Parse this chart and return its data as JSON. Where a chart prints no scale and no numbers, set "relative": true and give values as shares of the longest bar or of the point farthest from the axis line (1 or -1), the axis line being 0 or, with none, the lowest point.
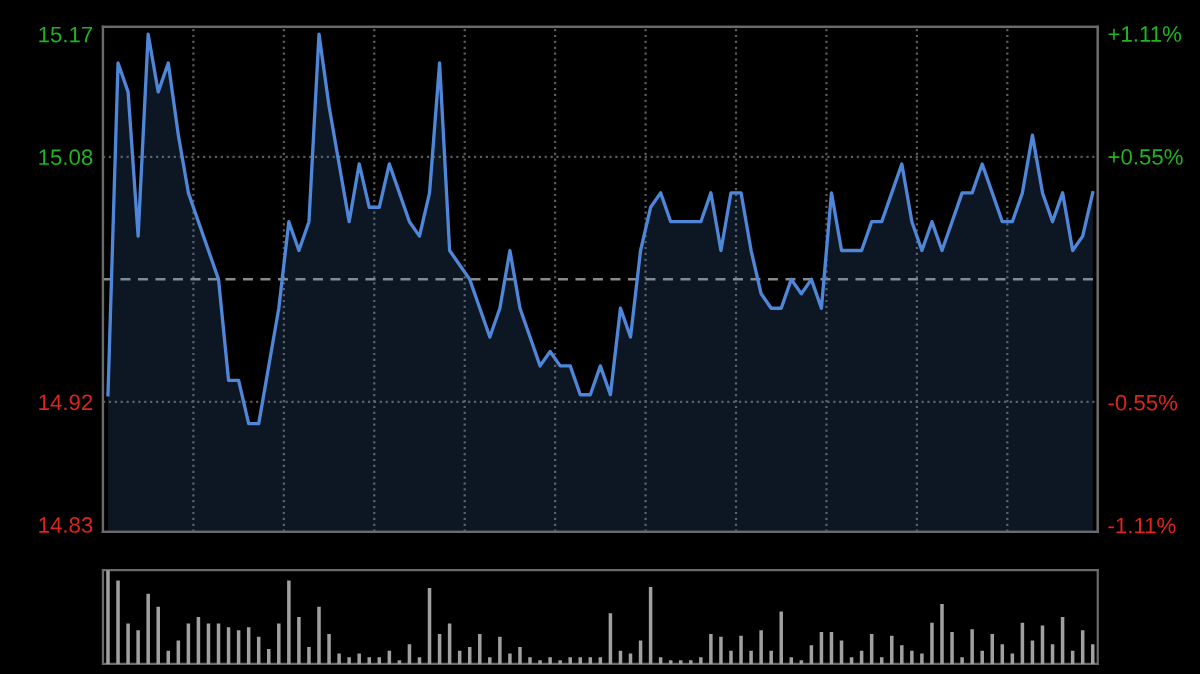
{
  "chart_data": [
    {
      "type": "area",
      "categories": [
        null,
        null,
        null,
        null,
        null,
        null,
        null,
        null,
        null,
        null,
        null,
        null,
        null,
        null,
        null,
        null,
        null,
        null,
        null,
        null,
        null,
        null,
        null,
        null,
        null,
        null,
        null,
        null,
        null,
        null,
        null,
        null,
        null,
        null,
        null,
        null,
        null,
        null,
        null,
        null,
        null,
        null,
        null,
        null,
        null,
        null,
        null,
        null,
        null,
        null,
        null,
        null,
        null,
        null,
        null,
        null,
        null,
        null,
        null,
        null,
        null,
        null,
        null,
        null,
        null,
        null,
        null,
        null,
        null,
        null,
        null,
        null,
        null,
        null,
        null,
        null,
        null,
        null,
        null,
        null,
        null,
        null,
        null,
        null,
        null,
        null,
        null,
        null,
        null,
        null,
        null,
        null,
        null,
        null,
        null,
        null,
        null,
        null,
        null
      ],
      "series": [
        {
          "color": "#4f86d8",
          "values": [
            14.92,
            15.15,
            15.13,
            15.03,
            15.17,
            15.13,
            15.15,
            15.1,
            15.06,
            15.04,
            15.02,
            15.0,
            14.93,
            14.93,
            14.9,
            14.9,
            14.94,
            14.98,
            15.04,
            15.02,
            15.04,
            15.17,
            15.12,
            15.08,
            15.04,
            15.08,
            15.05,
            15.05,
            15.08,
            15.06,
            15.04,
            15.03,
            15.06,
            15.15,
            15.02,
            15.01,
            15.0,
            14.98,
            14.96,
            14.98,
            15.02,
            14.98,
            14.96,
            14.94,
            14.95,
            14.94,
            14.94,
            14.92,
            14.92,
            14.94,
            14.92,
            14.98,
            14.96,
            15.02,
            15.05,
            15.06,
            15.04,
            15.04,
            15.04,
            15.04,
            15.06,
            15.02,
            15.06,
            15.06,
            15.02,
            14.99,
            14.98,
            14.98,
            15.0,
            14.99,
            15.0,
            14.98,
            15.06,
            15.02,
            15.02,
            15.02,
            15.04,
            15.04,
            15.06,
            15.08,
            15.04,
            15.02,
            15.04,
            15.02,
            15.04,
            15.06,
            15.06,
            15.08,
            15.06,
            15.04,
            15.04,
            15.06,
            15.1,
            15.06,
            15.04,
            15.06,
            15.02,
            15.03,
            15.06
          ]
        }
      ],
      "ylim": [
        14.825,
        15.175
      ],
      "yticks": [
        15.17,
        {
          "value": 15.085,
          "label": "15.08"
        },
        {
          "value": 14.915,
          "label": "14.92"
        },
        14.83
      ],
      "y2lim": [
        -1.14,
        1.14
      ],
      "y2ticks": [
        {
          "value": 1.11,
          "label": "+1.11%"
        },
        {
          "value": 0.555,
          "label": "+0.55%"
        },
        {
          "value": -0.555,
          "label": "-0.55%"
        },
        {
          "value": -1.11,
          "label": "-1.11%"
        }
      ],
      "ref_lines": [
        {
          "axis": "y",
          "value": 15.0,
          "color": "#8a8a8a",
          "line_style": "dashed"
        }
      ],
      "grid": true
    },
    {
      "type": "bar",
      "relative": true,
      "categories": [
        null,
        null,
        null,
        null,
        null,
        null,
        null,
        null,
        null,
        null,
        null,
        null,
        null,
        null,
        null,
        null,
        null,
        null,
        null,
        null,
        null,
        null,
        null,
        null,
        null,
        null,
        null,
        null,
        null,
        null,
        null,
        null,
        null,
        null,
        null,
        null,
        null,
        null,
        null,
        null,
        null,
        null,
        null,
        null,
        null,
        null,
        null,
        null,
        null,
        null,
        null,
        null,
        null,
        null,
        null,
        null,
        null,
        null,
        null,
        null,
        null,
        null,
        null,
        null,
        null,
        null,
        null,
        null,
        null,
        null,
        null,
        null,
        null,
        null,
        null,
        null,
        null,
        null,
        null,
        null,
        null,
        null,
        null,
        null,
        null,
        null,
        null,
        null,
        null,
        null,
        null,
        null,
        null,
        null,
        null,
        null,
        null,
        null,
        null
      ],
      "series": [
        {
          "color": "#a0a0a0",
          "values": [
            1.0,
            0.89,
            0.43,
            0.36,
            0.75,
            0.61,
            0.14,
            0.25,
            0.43,
            0.5,
            0.43,
            0.43,
            0.39,
            0.36,
            0.39,
            0.29,
            0.16,
            0.43,
            0.89,
            0.5,
            0.18,
            0.61,
            0.32,
            0.11,
            0.07,
            0.11,
            0.07,
            0.07,
            0.14,
            0.04,
            0.21,
            0.07,
            0.81,
            0.32,
            0.43,
            0.14,
            0.18,
            0.32,
            0.07,
            0.29,
            0.11,
            0.18,
            0.07,
            0.04,
            0.07,
            0.04,
            0.07,
            0.07,
            0.07,
            0.07,
            0.54,
            0.14,
            0.11,
            0.25,
            0.82,
            0.07,
            0.04,
            0.04,
            0.04,
            0.07,
            0.32,
            0.29,
            0.14,
            0.3,
            0.14,
            0.36,
            0.14,
            0.56,
            0.07,
            0.04,
            0.2,
            0.34,
            0.34,
            0.25,
            0.07,
            0.14,
            0.32,
            0.07,
            0.3,
            0.2,
            0.14,
            0.11,
            0.44,
            0.64,
            0.34,
            0.07,
            0.37,
            0.14,
            0.32,
            0.21,
            0.11,
            0.44,
            0.25,
            0.41,
            0.21,
            0.5,
            0.14,
            0.36,
            0.21
          ]
        }
      ]
    }
  ]
}
